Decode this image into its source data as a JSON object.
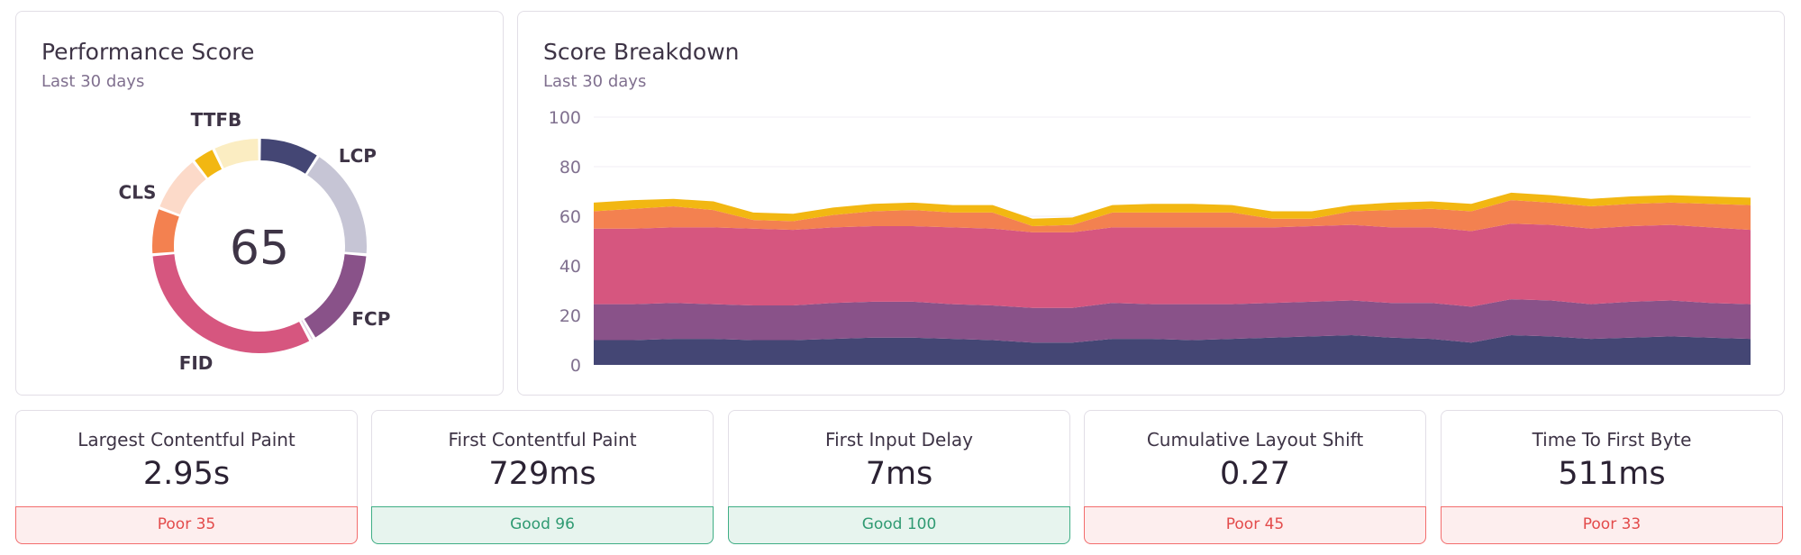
{
  "score_panel": {
    "title": "Performance Score",
    "subtitle": "Last 30 days",
    "score": "65",
    "segments": [
      {
        "label": "LCP",
        "score": 35,
        "weight": 25,
        "color": "#444674"
      },
      {
        "label": "FCP",
        "score": 96,
        "weight": 15,
        "color": "#895289"
      },
      {
        "label": "FID",
        "score": 100,
        "weight": 30,
        "color": "#d6567f"
      },
      {
        "label": "CLS",
        "score": 45,
        "weight": 15,
        "color": "#f38150"
      },
      {
        "label": "TTFB",
        "score": 33,
        "weight": 10,
        "color": "#f2b712"
      }
    ],
    "remainder_colors": [
      "#c6c5d5",
      "#e1cde1",
      "#f6cedc",
      "#fcdac9",
      "#fbedc2"
    ]
  },
  "breakdown_panel": {
    "title": "Score Breakdown",
    "subtitle": "Last 30 days"
  },
  "chart_data": {
    "type": "area",
    "title": "Score Breakdown",
    "stacked": true,
    "ylim": [
      0,
      100
    ],
    "yticks": [
      0,
      20,
      40,
      60,
      80,
      100
    ],
    "grid": true,
    "x": [
      1,
      2,
      3,
      4,
      5,
      6,
      7,
      8,
      9,
      10,
      11,
      12,
      13,
      14,
      15,
      16,
      17,
      18,
      19,
      20,
      21,
      22,
      23,
      24,
      25,
      26,
      27,
      28,
      29,
      30
    ],
    "series": [
      {
        "color": "#444674",
        "values": [
          10,
          10,
          10.5,
          10.5,
          10,
          10,
          10.5,
          11,
          11,
          10.5,
          10,
          9,
          9,
          10.5,
          10.5,
          10,
          10.5,
          11,
          11.5,
          12,
          11,
          10.5,
          9,
          12,
          11.5,
          10.5,
          11,
          11.5,
          11,
          10.5
        ]
      },
      {
        "color": "#895289",
        "values": [
          14.5,
          14.5,
          14.5,
          14,
          14,
          14,
          14.5,
          14.5,
          14.5,
          14,
          14,
          14,
          14,
          14.5,
          14,
          14.5,
          14,
          14,
          14,
          14,
          14,
          14.5,
          14.5,
          14.5,
          14.5,
          14,
          14.5,
          14.5,
          14,
          14
        ]
      },
      {
        "color": "#d6567f",
        "values": [
          30.5,
          30.5,
          30.5,
          31,
          31,
          30.5,
          30.5,
          30.5,
          30.5,
          31,
          31,
          30.5,
          30.5,
          30.5,
          31,
          31,
          31,
          30.5,
          30.5,
          30.5,
          30.5,
          30.5,
          30.5,
          30.5,
          30.5,
          30.5,
          30.5,
          30.5,
          30.5,
          30
        ]
      },
      {
        "color": "#f38150",
        "values": [
          7,
          8,
          8.5,
          7,
          3.5,
          3.5,
          5,
          6,
          6.5,
          6,
          6.5,
          2.5,
          3,
          6,
          6,
          6,
          6,
          3.5,
          3,
          5.5,
          7,
          7.5,
          8,
          9.5,
          9,
          9,
          9,
          9,
          9.5,
          10
        ]
      },
      {
        "color": "#f2b712",
        "values": [
          3.5,
          3.5,
          3,
          3.5,
          3,
          3,
          3,
          3,
          3,
          3,
          3,
          3,
          3,
          3,
          3.5,
          3.5,
          3,
          3,
          3,
          2.5,
          3,
          3,
          3,
          3,
          3,
          3,
          3,
          3,
          3,
          3
        ]
      }
    ]
  },
  "metrics": [
    {
      "name": "Largest Contentful Paint",
      "value": "2.95s",
      "status": "Poor 35",
      "state": "poor"
    },
    {
      "name": "First Contentful Paint",
      "value": "729ms",
      "status": "Good 96",
      "state": "good"
    },
    {
      "name": "First Input Delay",
      "value": "7ms",
      "status": "Good 100",
      "state": "good"
    },
    {
      "name": "Cumulative Layout Shift",
      "value": "0.27",
      "status": "Poor 45",
      "state": "poor"
    },
    {
      "name": "Time To First Byte",
      "value": "511ms",
      "status": "Poor 33",
      "state": "poor"
    }
  ]
}
